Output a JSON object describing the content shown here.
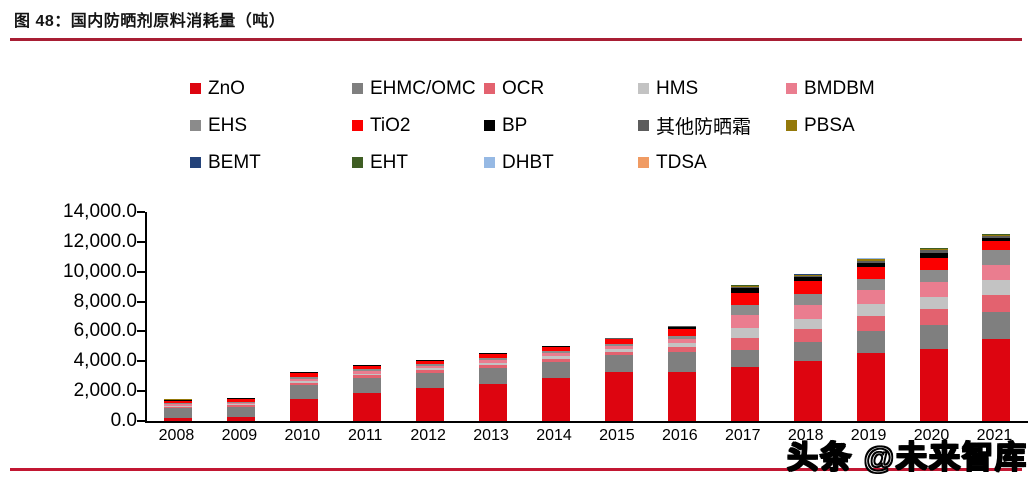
{
  "header": {
    "title": "图 48：国内防晒剂原料消耗量（吨）"
  },
  "watermark": {
    "text": "头条 @未来智库"
  },
  "colors": {
    "rule_top": "#a81e34",
    "rule_bottom": "#c21732",
    "axis": "#000000",
    "background": "#ffffff"
  },
  "chart_data": {
    "type": "bar",
    "stacked": true,
    "title": "国内防晒剂原料消耗量（吨）",
    "xlabel": "",
    "ylabel": "",
    "grid": false,
    "legend_position": "top",
    "legend_columns": 5,
    "ylim": [
      0,
      14000
    ],
    "ytick_step": 2000,
    "ytick_labels": [
      "0.0",
      "2,000.0",
      "4,000.0",
      "6,000.0",
      "8,000.0",
      "10,000.0",
      "12,000.0",
      "14,000.0"
    ],
    "categories": [
      "2008",
      "2009",
      "2010",
      "2011",
      "2012",
      "2013",
      "2014",
      "2015",
      "2016",
      "2017",
      "2018",
      "2019",
      "2020",
      "2021"
    ],
    "series": [
      {
        "name": "ZnO",
        "color": "#dd0510",
        "values": [
          200,
          250,
          1500,
          1900,
          2200,
          2500,
          2850,
          3250,
          3250,
          3600,
          4050,
          4550,
          4800,
          5500
        ]
      },
      {
        "name": "EHMC/OMC",
        "color": "#7f7f7f",
        "values": [
          650,
          680,
          900,
          950,
          1000,
          1050,
          1100,
          1150,
          1350,
          1150,
          1250,
          1500,
          1650,
          1800
        ]
      },
      {
        "name": "OCR",
        "color": "#e3626f",
        "values": [
          110,
          120,
          180,
          200,
          210,
          220,
          230,
          240,
          350,
          800,
          850,
          1000,
          1070,
          1150
        ]
      },
      {
        "name": "HMS",
        "color": "#c3c3c3",
        "values": [
          70,
          70,
          120,
          130,
          140,
          150,
          160,
          170,
          250,
          670,
          700,
          800,
          800,
          1000
        ]
      },
      {
        "name": "BMDBM",
        "color": "#ea7d8f",
        "values": [
          90,
          100,
          150,
          160,
          170,
          180,
          200,
          210,
          280,
          870,
          950,
          950,
          1000,
          1000
        ]
      },
      {
        "name": "EHS",
        "color": "#8b8b8b",
        "values": [
          70,
          70,
          120,
          120,
          120,
          130,
          140,
          150,
          210,
          670,
          700,
          700,
          800,
          1000
        ]
      },
      {
        "name": "TiO2",
        "color": "#fb0000",
        "values": [
          150,
          170,
          230,
          220,
          190,
          250,
          290,
          300,
          480,
          800,
          850,
          850,
          800,
          600
        ]
      },
      {
        "name": "BP",
        "color": "#000000",
        "values": [
          70,
          60,
          70,
          50,
          50,
          50,
          60,
          60,
          150,
          330,
          280,
          250,
          330,
          200
        ]
      },
      {
        "name": "其他防晒霜",
        "color": "#5c5c5c",
        "values": [
          30,
          20,
          20,
          15,
          15,
          15,
          15,
          15,
          40,
          100,
          110,
          150,
          180,
          130
        ]
      },
      {
        "name": "PBSA",
        "color": "#94790a",
        "values": [
          10,
          10,
          10,
          5,
          5,
          5,
          5,
          5,
          20,
          60,
          60,
          80,
          90,
          70
        ]
      },
      {
        "name": "BEMT",
        "color": "#24437a",
        "values": [
          0,
          0,
          0,
          0,
          0,
          0,
          0,
          0,
          10,
          20,
          20,
          30,
          30,
          40
        ]
      },
      {
        "name": "EHT",
        "color": "#3f5e23",
        "values": [
          0,
          0,
          0,
          0,
          0,
          0,
          0,
          0,
          5,
          15,
          15,
          20,
          20,
          30
        ]
      },
      {
        "name": "DHBT",
        "color": "#96b9e4",
        "values": [
          0,
          0,
          0,
          0,
          0,
          0,
          0,
          0,
          5,
          10,
          10,
          15,
          15,
          20
        ]
      },
      {
        "name": "TDSA",
        "color": "#f09b63",
        "values": [
          0,
          0,
          0,
          0,
          0,
          0,
          0,
          0,
          5,
          10,
          10,
          15,
          15,
          20
        ]
      }
    ]
  }
}
